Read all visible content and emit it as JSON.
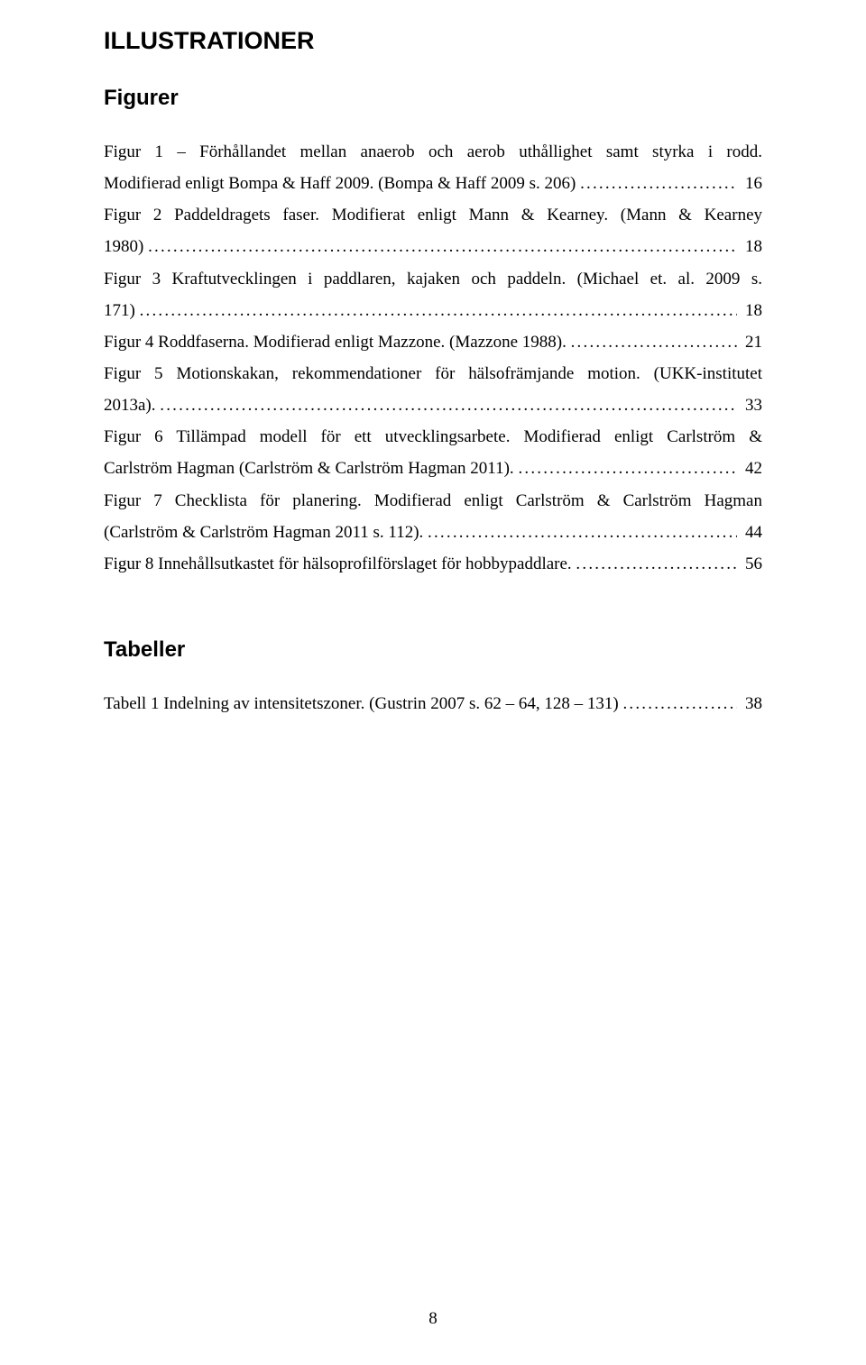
{
  "page": {
    "title": "ILLUSTRATIONER",
    "figures_heading": "Figurer",
    "tables_heading": "Tabeller",
    "page_number": "8"
  },
  "figures": [
    {
      "lines": [
        "Figur 1 – Förhållandet mellan anaerob och aerob uthållighet samt styrka i rodd."
      ],
      "lastline_prefix": "Modifierad enligt Bompa & Haff 2009. (Bompa & Haff 2009 s. 206)",
      "page": "16"
    },
    {
      "lines": [
        "Figur 2 Paddeldragets faser. Modifierat enligt Mann & Kearney. (Mann & Kearney"
      ],
      "lastline_prefix": "1980)",
      "page": "18"
    },
    {
      "lines": [
        "Figur 3 Kraftutvecklingen i paddlaren, kajaken och paddeln. (Michael et. al. 2009 s."
      ],
      "lastline_prefix": "171)",
      "page": "18"
    },
    {
      "lines": [],
      "lastline_prefix": "Figur 4 Roddfaserna. Modifierad enligt Mazzone. (Mazzone 1988).",
      "page": "21"
    },
    {
      "lines": [
        "Figur 5 Motionskakan, rekommendationer för hälsofrämjande motion. (UKK-institutet"
      ],
      "lastline_prefix": "2013a).",
      "page": "33"
    },
    {
      "lines": [
        "Figur 6 Tillämpad modell för ett utvecklingsarbete. Modifierad enligt Carlström &"
      ],
      "lastline_prefix": "Carlström Hagman (Carlström & Carlström Hagman 2011).",
      "page": "42"
    },
    {
      "lines": [
        "Figur 7 Checklista för planering. Modifierad enligt Carlström & Carlström Hagman"
      ],
      "lastline_prefix": "(Carlström & Carlström Hagman 2011 s. 112).",
      "page": "44"
    },
    {
      "lines": [],
      "lastline_prefix": "Figur 8 Innehållsutkastet för hälsoprofilförslaget för hobbypaddlare.",
      "page": "56"
    }
  ],
  "tables": [
    {
      "lines": [],
      "lastline_prefix": "Tabell 1 Indelning av intensitetszoner. (Gustrin 2007 s. 62 – 64, 128 – 131)",
      "page": "38"
    }
  ]
}
